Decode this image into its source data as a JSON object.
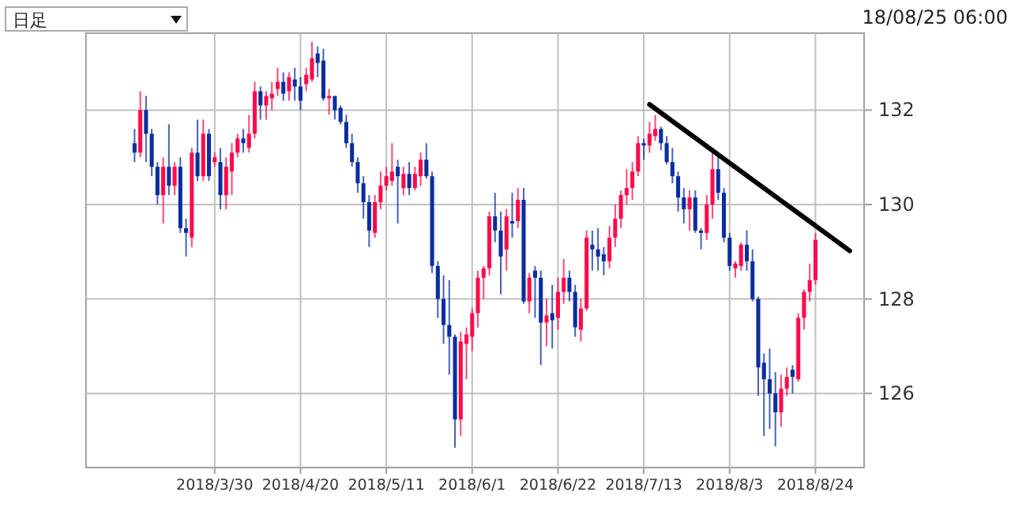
{
  "chart_data": {
    "type": "candlestick",
    "categories": [
      null,
      null,
      null,
      null,
      null,
      null,
      null,
      null,
      null,
      null,
      null,
      null,
      null,
      null,
      null,
      null,
      null,
      null,
      null,
      null,
      null,
      null,
      "2018/3/30",
      null,
      null,
      null,
      null,
      null,
      null,
      null,
      null,
      null,
      null,
      null,
      null,
      null,
      null,
      "2018/4/20",
      null,
      null,
      null,
      null,
      null,
      null,
      null,
      null,
      null,
      null,
      null,
      null,
      null,
      null,
      "2018/5/11",
      null,
      null,
      null,
      null,
      null,
      null,
      null,
      null,
      null,
      null,
      null,
      null,
      null,
      null,
      "2018/6/1",
      null,
      null,
      null,
      null,
      null,
      null,
      null,
      null,
      null,
      null,
      null,
      null,
      null,
      null,
      "2018/6/22",
      null,
      null,
      null,
      null,
      null,
      null,
      null,
      null,
      null,
      null,
      null,
      null,
      null,
      null,
      "2018/7/13",
      null,
      null,
      null,
      null,
      null,
      null,
      null,
      null,
      null,
      null,
      null,
      null,
      null,
      null,
      "2018/8/3",
      null,
      null,
      null,
      null,
      null,
      null,
      null,
      null,
      null,
      null,
      null,
      null,
      null,
      null,
      "2018/8/24",
      null,
      null,
      null,
      null,
      null,
      null,
      null,
      null
    ],
    "ohlc": [
      null,
      null,
      null,
      null,
      null,
      null,
      null,
      null,
      [
        131.3,
        131.6,
        130.9,
        131.1
      ],
      [
        131.1,
        132.4,
        131.0,
        132.0
      ],
      [
        132.0,
        132.3,
        130.9,
        131.5
      ],
      [
        131.5,
        131.6,
        130.6,
        130.8
      ],
      [
        130.8,
        130.9,
        130.0,
        130.2
      ],
      [
        130.2,
        131.0,
        129.6,
        130.8
      ],
      [
        130.8,
        131.7,
        130.2,
        130.4
      ],
      [
        130.4,
        130.9,
        130.2,
        130.8
      ],
      [
        130.8,
        131.0,
        129.4,
        129.5
      ],
      [
        129.5,
        129.7,
        128.9,
        129.4
      ],
      [
        129.3,
        131.2,
        129.1,
        131.1
      ],
      [
        131.1,
        131.8,
        130.5,
        130.6
      ],
      [
        130.6,
        131.8,
        130.5,
        131.5
      ],
      [
        131.5,
        131.6,
        130.5,
        130.6
      ],
      [
        130.9,
        131.1,
        130.8,
        131.0
      ],
      [
        130.9,
        131.2,
        129.9,
        130.2
      ],
      [
        130.2,
        131.0,
        129.9,
        130.8
      ],
      [
        130.7,
        131.3,
        130.2,
        131.1
      ],
      [
        131.1,
        131.5,
        131.0,
        131.4
      ],
      [
        131.4,
        131.6,
        131.1,
        131.3
      ],
      [
        131.2,
        131.9,
        131.1,
        131.5
      ],
      [
        131.5,
        132.6,
        131.4,
        132.4
      ],
      [
        132.4,
        132.5,
        131.8,
        132.1
      ],
      [
        132.1,
        132.4,
        131.8,
        132.3
      ],
      [
        132.25,
        132.6,
        132.0,
        132.35
      ],
      [
        132.45,
        132.9,
        132.3,
        132.6
      ],
      [
        132.6,
        132.8,
        132.2,
        132.35
      ],
      [
        132.4,
        132.8,
        132.2,
        132.7
      ],
      [
        132.65,
        132.9,
        132.2,
        132.5
      ],
      [
        132.5,
        132.7,
        132.0,
        132.2
      ],
      [
        132.55,
        132.9,
        132.4,
        132.75
      ],
      [
        132.65,
        133.45,
        132.6,
        133.1
      ],
      [
        133.2,
        133.35,
        132.7,
        133.0
      ],
      [
        133.05,
        133.3,
        132.2,
        132.25
      ],
      [
        132.25,
        132.45,
        131.9,
        132.3
      ],
      [
        132.3,
        132.3,
        131.8,
        132.0
      ],
      [
        132.05,
        132.1,
        131.7,
        131.75
      ],
      [
        131.75,
        131.9,
        131.2,
        131.3
      ],
      [
        131.3,
        131.5,
        130.8,
        130.9
      ],
      [
        130.9,
        131.0,
        130.25,
        130.45
      ],
      [
        130.45,
        130.6,
        129.7,
        130.05
      ],
      [
        130.05,
        130.2,
        129.1,
        129.45
      ],
      [
        129.4,
        130.2,
        129.3,
        130.05
      ],
      [
        130.05,
        130.7,
        129.9,
        130.4
      ],
      [
        130.4,
        130.8,
        130.3,
        130.6
      ],
      [
        130.5,
        131.3,
        130.4,
        130.7
      ],
      [
        130.8,
        130.95,
        129.6,
        130.6
      ],
      [
        130.35,
        130.8,
        130.2,
        130.65
      ],
      [
        130.65,
        130.9,
        130.2,
        130.35
      ],
      [
        130.35,
        130.8,
        130.3,
        130.65
      ],
      [
        130.6,
        131.1,
        130.4,
        130.95
      ],
      [
        130.95,
        131.3,
        130.55,
        130.6
      ],
      [
        130.6,
        130.7,
        128.55,
        128.7
      ],
      [
        128.7,
        128.8,
        127.6,
        128.0
      ],
      [
        128.0,
        128.5,
        127.05,
        127.45
      ],
      [
        127.45,
        128.4,
        126.4,
        127.2
      ],
      [
        127.2,
        127.25,
        124.85,
        125.45
      ],
      [
        125.45,
        127.3,
        125.1,
        127.1
      ],
      [
        127.05,
        127.4,
        126.3,
        127.25
      ],
      [
        127.2,
        127.8,
        126.9,
        127.7
      ],
      [
        127.7,
        128.6,
        127.4,
        128.45
      ],
      [
        128.45,
        128.7,
        128.0,
        128.65
      ],
      [
        128.65,
        129.85,
        128.5,
        129.75
      ],
      [
        129.75,
        130.25,
        129.2,
        129.45
      ],
      [
        129.45,
        129.85,
        128.1,
        128.9
      ],
      [
        129.05,
        129.9,
        128.6,
        129.75
      ],
      [
        129.65,
        130.25,
        129.3,
        129.6
      ],
      [
        129.65,
        130.35,
        129.5,
        130.1
      ],
      [
        130.1,
        130.35,
        127.9,
        127.95
      ],
      [
        127.95,
        128.55,
        127.7,
        128.45
      ],
      [
        128.6,
        128.7,
        127.6,
        128.45
      ],
      [
        128.45,
        128.6,
        126.6,
        127.5
      ],
      [
        127.5,
        128.0,
        127.0,
        127.65
      ],
      [
        127.7,
        128.3,
        126.95,
        127.55
      ],
      [
        127.6,
        128.45,
        127.35,
        128.15
      ],
      [
        128.15,
        128.85,
        127.9,
        128.45
      ],
      [
        128.45,
        128.6,
        127.95,
        128.15
      ],
      [
        128.15,
        128.3,
        127.2,
        127.4
      ],
      [
        127.35,
        128.0,
        127.1,
        127.8
      ],
      [
        127.8,
        129.45,
        127.75,
        129.3
      ],
      [
        129.15,
        129.45,
        128.6,
        129.05
      ],
      [
        129.05,
        129.5,
        128.6,
        128.9
      ],
      [
        128.95,
        129.1,
        128.5,
        128.8
      ],
      [
        128.8,
        129.55,
        128.65,
        129.3
      ],
      [
        129.3,
        130.0,
        129.1,
        129.7
      ],
      [
        129.7,
        130.3,
        129.5,
        130.2
      ],
      [
        130.2,
        130.75,
        130.0,
        130.35
      ],
      [
        130.35,
        130.9,
        130.1,
        130.7
      ],
      [
        130.7,
        131.45,
        130.6,
        131.3
      ],
      [
        131.3,
        131.4,
        130.95,
        131.25
      ],
      [
        131.25,
        131.75,
        131.1,
        131.5
      ],
      [
        131.45,
        131.9,
        131.35,
        131.6
      ],
      [
        131.6,
        131.65,
        131.15,
        131.3
      ],
      [
        131.3,
        131.45,
        130.85,
        130.9
      ],
      [
        130.9,
        131.2,
        130.45,
        130.6
      ],
      [
        130.6,
        130.7,
        129.85,
        130.15
      ],
      [
        130.15,
        130.35,
        129.6,
        129.9
      ],
      [
        129.9,
        130.3,
        129.45,
        130.15
      ],
      [
        130.15,
        130.3,
        129.4,
        129.45
      ],
      [
        129.45,
        129.5,
        129.05,
        129.4
      ],
      [
        129.4,
        130.2,
        129.25,
        130.0
      ],
      [
        130.0,
        131.1,
        129.7,
        130.75
      ],
      [
        130.75,
        131.05,
        130.1,
        130.25
      ],
      [
        130.25,
        130.35,
        129.2,
        129.3
      ],
      [
        129.3,
        129.4,
        128.6,
        128.7
      ],
      [
        128.65,
        128.8,
        128.45,
        128.75
      ],
      [
        128.7,
        129.2,
        128.6,
        129.15
      ],
      [
        129.15,
        129.45,
        128.6,
        128.8
      ],
      [
        128.8,
        129.05,
        127.95,
        128.0
      ],
      [
        128.0,
        128.05,
        125.95,
        126.55
      ],
      [
        126.65,
        126.85,
        125.1,
        126.3
      ],
      [
        126.3,
        126.95,
        125.25,
        126.0
      ],
      [
        126.0,
        126.45,
        124.88,
        125.6
      ],
      [
        125.6,
        126.4,
        125.3,
        126.1
      ],
      [
        126.1,
        126.55,
        125.95,
        126.35
      ],
      [
        126.5,
        126.6,
        126.0,
        126.35
      ],
      [
        126.3,
        127.7,
        126.25,
        127.6
      ],
      [
        127.6,
        128.2,
        127.35,
        128.15
      ],
      [
        128.15,
        128.75,
        127.95,
        128.4
      ],
      [
        128.4,
        129.4,
        128.3,
        129.25
      ],
      null,
      null,
      null,
      null,
      null,
      null,
      null,
      null
    ],
    "colors": [
      null,
      null,
      null,
      null,
      null,
      null,
      null,
      null,
      "#0a2e9e",
      "#ff0a4b",
      "#0a2e9e",
      "#0a2e9e",
      "#0a2e9e",
      "#ff0a4b",
      "#0a2e9e",
      "#ff0a4b",
      "#0a2e9e",
      "#0a2e9e",
      "#ff0a4b",
      "#0a2e9e",
      "#ff0a4b",
      "#0a2e9e",
      "#ff0a4b",
      "#0a2e9e",
      "#ff0a4b",
      "#ff0a4b",
      "#ff0a4b",
      "#0a2e9e",
      "#ff0a4b",
      "#ff0a4b",
      "#0a2e9e",
      "#ff0a4b",
      "#ff0a4b",
      "#ff0a4b",
      "#0a2e9e",
      "#ff0a4b",
      "#0a2e9e",
      "#0a2e9e",
      "#ff0a4b",
      "#ff0a4b",
      "#0a2e9e",
      "#0a2e9e",
      "#ff0a4b",
      "#0a2e9e",
      "#0a2e9e",
      "#0a2e9e",
      "#0a2e9e",
      "#0a2e9e",
      "#0a2e9e",
      "#0a2e9e",
      "#ff0a4b",
      "#ff0a4b",
      "#ff0a4b",
      "#ff0a4b",
      "#0a2e9e",
      "#ff0a4b",
      "#0a2e9e",
      "#ff0a4b",
      "#ff0a4b",
      "#0a2e9e",
      "#0a2e9e",
      "#0a2e9e",
      "#0a2e9e",
      "#0a2e9e",
      "#0a2e9e",
      "#ff0a4b",
      "#ff0a4b",
      "#ff0a4b",
      "#ff0a4b",
      "#ff0a4b",
      "#ff0a4b",
      "#0a2e9e",
      "#0a2e9e",
      "#ff0a4b",
      "#0a2e9e",
      "#ff0a4b",
      "#0a2e9e",
      "#ff0a4b",
      "#0a2e9e",
      "#0a2e9e",
      "#ff0a4b",
      "#0a2e9e",
      "#ff0a4b",
      "#ff0a4b",
      "#0a2e9e",
      "#0a2e9e",
      "#ff0a4b",
      "#ff0a4b",
      "#0a2e9e",
      "#0a2e9e",
      "#0a2e9e",
      "#ff0a4b",
      "#ff0a4b",
      "#ff0a4b",
      "#ff0a4b",
      "#ff0a4b",
      "#ff0a4b",
      "#0a2e9e",
      "#ff0a4b",
      "#ff0a4b",
      "#0a2e9e",
      "#0a2e9e",
      "#0a2e9e",
      "#0a2e9e",
      "#0a2e9e",
      "#ff0a4b",
      "#0a2e9e",
      "#0a2e9e",
      "#ff0a4b",
      "#ff0a4b",
      "#0a2e9e",
      "#0a2e9e",
      "#0a2e9e",
      "#ff0a4b",
      "#ff0a4b",
      "#0a2e9e",
      "#0a2e9e",
      "#0a2e9e",
      "#0a2e9e",
      "#0a2e9e",
      "#0a2e9e",
      "#ff0a4b",
      "#ff0a4b",
      "#0a2e9e",
      "#ff0a4b",
      "#ff0a4b",
      "#ff0a4b",
      "#ff0a4b",
      null,
      null,
      null,
      null,
      null,
      null,
      null,
      null
    ],
    "series": [
      {
        "type": "line",
        "color": "#000000",
        "values": [
          null,
          null,
          null,
          null,
          null,
          null,
          null,
          null,
          null,
          null,
          null,
          null,
          null,
          null,
          null,
          null,
          null,
          null,
          null,
          null,
          null,
          null,
          null,
          null,
          null,
          null,
          null,
          null,
          null,
          null,
          null,
          null,
          null,
          null,
          null,
          null,
          null,
          null,
          null,
          null,
          null,
          null,
          null,
          null,
          null,
          null,
          null,
          null,
          null,
          null,
          null,
          null,
          null,
          null,
          null,
          null,
          null,
          null,
          null,
          null,
          null,
          null,
          null,
          null,
          null,
          null,
          null,
          null,
          null,
          null,
          null,
          null,
          null,
          null,
          null,
          null,
          null,
          null,
          null,
          null,
          null,
          null,
          null,
          null,
          null,
          null,
          null,
          null,
          null,
          null,
          null,
          null,
          null,
          null,
          null,
          null,
          null,
          null,
          132.12,
          null,
          null,
          null,
          null,
          null,
          null,
          null,
          null,
          null,
          null,
          null,
          null,
          null,
          null,
          null,
          null,
          null,
          null,
          null,
          null,
          null,
          null,
          null,
          null,
          null,
          null,
          null,
          null,
          null,
          null,
          null,
          null,
          null,
          null,
          129.02,
          null,
          null
        ]
      }
    ],
    "ylim": [
      124.43,
      133.63
    ],
    "yticks": [
      126,
      128,
      130,
      132
    ],
    "grid": true,
    "annotations": [
      "日足",
      "18/08/25 06:00"
    ]
  }
}
